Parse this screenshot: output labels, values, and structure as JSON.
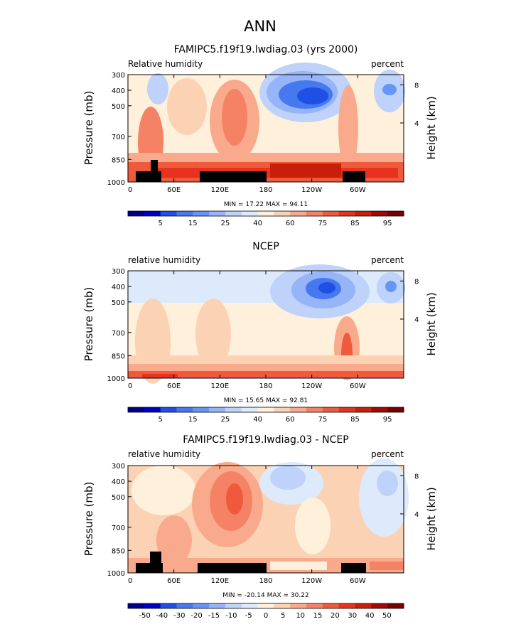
{
  "page_title": "ANN",
  "chart_data": [
    {
      "type": "heatmap",
      "title": "FAMIPC5.f19f19.lwdiag.03 (yrs 2000)",
      "left_label": "Relative humidity",
      "right_label": "percent",
      "ylabel": "Pressure (mb)",
      "ylabel_right": "Height (km)",
      "xticks": [
        "0",
        "60E",
        "120E",
        "180",
        "120W",
        "60W"
      ],
      "yticks": [
        "300",
        "400",
        "500",
        "700",
        "850",
        "1000"
      ],
      "yticks_right": [
        "8",
        "4"
      ],
      "stats": "MIN =   17.22   MAX =   94.11",
      "colorbar_labels": [
        "5",
        "15",
        "25",
        "40",
        "60",
        "75",
        "85",
        "95"
      ],
      "colors": [
        "#00008c",
        "#0000c8",
        "#1e50e6",
        "#4678f0",
        "#6496f5",
        "#96b4f8",
        "#bed2fa",
        "#dceafc",
        "#fff0dc",
        "#fcd2b4",
        "#faaa8c",
        "#f58264",
        "#f05a3c",
        "#e6321e",
        "#c81e0a",
        "#a00a00",
        "#780000"
      ]
    },
    {
      "type": "heatmap",
      "title": "NCEP",
      "left_label": "relative humidity",
      "right_label": "percent",
      "ylabel": "Pressure (mb)",
      "ylabel_right": "Height (km)",
      "xticks": [
        "0",
        "60E",
        "120E",
        "180",
        "120W",
        "60W"
      ],
      "yticks": [
        "300",
        "400",
        "500",
        "700",
        "850",
        "1000"
      ],
      "yticks_right": [
        "8",
        "4"
      ],
      "stats": "MIN =   15.65   MAX =   92.81",
      "colorbar_labels": [
        "5",
        "15",
        "25",
        "40",
        "60",
        "75",
        "85",
        "95"
      ],
      "colors": [
        "#00008c",
        "#0000c8",
        "#1e50e6",
        "#4678f0",
        "#6496f5",
        "#96b4f8",
        "#bed2fa",
        "#dceafc",
        "#fff0dc",
        "#fcd2b4",
        "#faaa8c",
        "#f58264",
        "#f05a3c",
        "#e6321e",
        "#c81e0a",
        "#a00a00",
        "#780000"
      ]
    },
    {
      "type": "heatmap",
      "title": "FAMIPC5.f19f19.lwdiag.03 - NCEP",
      "left_label": "relative humidity",
      "right_label": "percent",
      "ylabel": "Pressure (mb)",
      "ylabel_right": "Height (km)",
      "xticks": [
        "0",
        "60E",
        "120E",
        "180",
        "120W",
        "60W"
      ],
      "yticks": [
        "300",
        "400",
        "500",
        "700",
        "850",
        "1000"
      ],
      "yticks_right": [
        "8",
        "4"
      ],
      "stats": "MIN =  -20.14   MAX =   30.22",
      "colorbar_labels": [
        "-50",
        "-40",
        "-30",
        "-20",
        "-15",
        "-10",
        "-5",
        "0",
        "5",
        "10",
        "15",
        "20",
        "30",
        "40",
        "50"
      ],
      "colors": [
        "#00008c",
        "#0000c8",
        "#1e50e6",
        "#4678f0",
        "#6496f5",
        "#96b4f8",
        "#bed2fa",
        "#dceafc",
        "#fff0dc",
        "#fcd2b4",
        "#faaa8c",
        "#f58264",
        "#f05a3c",
        "#e6321e",
        "#c81e0a",
        "#a00a00",
        "#780000"
      ]
    }
  ]
}
